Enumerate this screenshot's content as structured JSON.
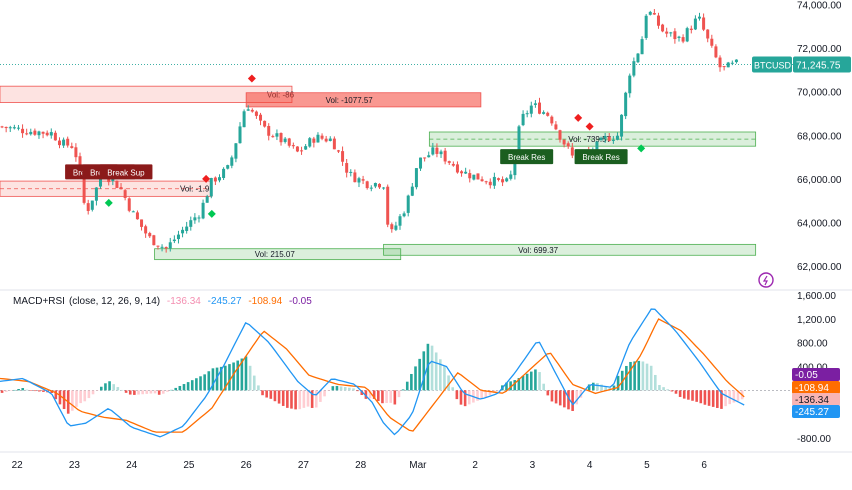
{
  "chart_data": [
    {
      "type": "candlestick",
      "symbol": "BTCUSD",
      "last_price": "71,245.75",
      "colors": {
        "up": "#26a69a",
        "down": "#ef5350",
        "price_line": "#26a69a"
      },
      "price_axis": {
        "ticks": [
          "74,000.00",
          "72,000.00",
          "70,000.00",
          "68,000.00",
          "66,000.00",
          "64,000.00",
          "62,000.00"
        ],
        "ylim": [
          61000,
          74200
        ]
      },
      "time_axis": {
        "ticks": [
          "22",
          "23",
          "24",
          "25",
          "26",
          "27",
          "28",
          "Mar",
          "2",
          "3",
          "4",
          "5",
          "6"
        ],
        "xlim": [
          21.7,
          35.5
        ]
      },
      "ohlc_anchors": [
        {
          "t": 21.7,
          "p": 68400
        },
        {
          "t": 22.2,
          "p": 68200
        },
        {
          "t": 22.6,
          "p": 68100
        },
        {
          "t": 22.8,
          "p": 67600
        },
        {
          "t": 23.0,
          "p": 67500
        },
        {
          "t": 23.2,
          "p": 64400
        },
        {
          "t": 23.5,
          "p": 66300
        },
        {
          "t": 23.8,
          "p": 65600
        },
        {
          "t": 24.0,
          "p": 64500
        },
        {
          "t": 24.3,
          "p": 63300
        },
        {
          "t": 24.6,
          "p": 62800
        },
        {
          "t": 24.8,
          "p": 63400
        },
        {
          "t": 25.2,
          "p": 64500
        },
        {
          "t": 25.4,
          "p": 65900
        },
        {
          "t": 25.7,
          "p": 66500
        },
        {
          "t": 26.0,
          "p": 69500
        },
        {
          "t": 26.3,
          "p": 68300
        },
        {
          "t": 26.6,
          "p": 67800
        },
        {
          "t": 26.9,
          "p": 67200
        },
        {
          "t": 27.2,
          "p": 67900
        },
        {
          "t": 27.5,
          "p": 67800
        },
        {
          "t": 27.8,
          "p": 66200
        },
        {
          "t": 28.1,
          "p": 65800
        },
        {
          "t": 28.4,
          "p": 65800
        },
        {
          "t": 28.5,
          "p": 63300
        },
        {
          "t": 28.8,
          "p": 64800
        },
        {
          "t": 29.0,
          "p": 66800
        },
        {
          "t": 29.3,
          "p": 67300
        },
        {
          "t": 29.5,
          "p": 66900
        },
        {
          "t": 29.8,
          "p": 66300
        },
        {
          "t": 30.0,
          "p": 66100
        },
        {
          "t": 30.3,
          "p": 65900
        },
        {
          "t": 30.6,
          "p": 65800
        },
        {
          "t": 30.8,
          "p": 68700
        },
        {
          "t": 31.0,
          "p": 69400
        },
        {
          "t": 31.3,
          "p": 68900
        },
        {
          "t": 31.5,
          "p": 67900
        },
        {
          "t": 31.7,
          "p": 67000
        },
        {
          "t": 32.0,
          "p": 67200
        },
        {
          "t": 32.3,
          "p": 67900
        },
        {
          "t": 32.5,
          "p": 68000
        },
        {
          "t": 32.7,
          "p": 70900
        },
        {
          "t": 32.9,
          "p": 72200
        },
        {
          "t": 33.0,
          "p": 73800
        },
        {
          "t": 33.3,
          "p": 72700
        },
        {
          "t": 33.6,
          "p": 72400
        },
        {
          "t": 33.9,
          "p": 73400
        },
        {
          "t": 34.1,
          "p": 72100
        },
        {
          "t": 34.3,
          "p": 71000
        },
        {
          "t": 34.6,
          "p": 71300
        }
      ],
      "zones": [
        {
          "kind": "supply",
          "t0": 21.7,
          "t1": 26.8,
          "top": 70250,
          "bottom": 69500,
          "label": "Vol: -86",
          "label_t": 26.6
        },
        {
          "kind": "supply",
          "t0": 26.0,
          "t1": 30.1,
          "top": 69950,
          "bottom": 69300,
          "label": "Vol: -1077.57",
          "label_t": 27.8
        },
        {
          "kind": "supply",
          "t0": 21.7,
          "t1": 25.4,
          "top": 65900,
          "bottom": 65200,
          "label": "Vol: -1.9",
          "label_t": 25.1
        },
        {
          "kind": "demand",
          "t0": 24.4,
          "t1": 28.7,
          "top": 62800,
          "bottom": 62300,
          "label": "Vol: 215.07",
          "label_t": 26.5
        },
        {
          "kind": "demand",
          "t0": 28.4,
          "t1": 34.9,
          "top": 63000,
          "bottom": 62500,
          "label": "Vol: 699.37",
          "label_t": 31.1
        },
        {
          "kind": "demand",
          "t0": 29.2,
          "t1": 34.9,
          "top": 68150,
          "bottom": 67500,
          "label": "Vol: -739.57",
          "label_t": 32.0
        }
      ],
      "break_labels": [
        {
          "text": "Break Sup",
          "t": 23.3,
          "p": 66300,
          "color": "#8b1a1a"
        },
        {
          "text": "Break Sup",
          "t": 23.6,
          "p": 66300,
          "color": "#8b1a1a"
        },
        {
          "text": "Break Sup",
          "t": 23.9,
          "p": 66300,
          "color": "#8b1a1a"
        },
        {
          "text": "Break Res",
          "t": 30.9,
          "p": 67000,
          "color": "#1b5e20"
        },
        {
          "text": "Break Res",
          "t": 32.2,
          "p": 67000,
          "color": "#1b5e20"
        }
      ],
      "diamonds": [
        {
          "t": 23.6,
          "p": 64900,
          "color": "#00c853"
        },
        {
          "t": 25.3,
          "p": 66000,
          "color": "#ef1f1f"
        },
        {
          "t": 25.4,
          "p": 64400,
          "color": "#00c853"
        },
        {
          "t": 26.1,
          "p": 70600,
          "color": "#ef1f1f"
        },
        {
          "t": 31.8,
          "p": 68800,
          "color": "#ef1f1f"
        },
        {
          "t": 32.0,
          "p": 68400,
          "color": "#ef1f1f"
        },
        {
          "t": 32.9,
          "p": 67400,
          "color": "#00c853"
        }
      ]
    },
    {
      "type": "macd",
      "title": "MACD+RSI",
      "params": "(close, 12, 26, 9, 14)",
      "legend_values": [
        {
          "text": "-136.34",
          "color": "#f8b4b4"
        },
        {
          "text": "-245.27",
          "color": "#2196f3"
        },
        {
          "text": "-108.94",
          "color": "#ff6d00"
        },
        {
          "text": "-0.05",
          "color": "#7b1fa2"
        }
      ],
      "value_axis": {
        "ticks": [
          "1,600.00",
          "1,200.00",
          "800.00",
          "400.00",
          "-800.00"
        ],
        "ylim": [
          -1000,
          1650
        ]
      },
      "badges": [
        {
          "text": "-0.05",
          "color": "#7b1fa2",
          "value": -0.05
        },
        {
          "text": "-108.94",
          "color": "#ff6d00",
          "value": -108.94
        },
        {
          "text": "-136.34",
          "color": "#f8b4b4",
          "value": -136.34
        },
        {
          "text": "-245.27",
          "color": "#2196f3",
          "value": -245.27
        }
      ],
      "macd_anchors": [
        {
          "t": 21.7,
          "v": 150
        },
        {
          "t": 22.1,
          "v": 200
        },
        {
          "t": 22.6,
          "v": -50
        },
        {
          "t": 22.9,
          "v": -600
        },
        {
          "t": 23.2,
          "v": -550
        },
        {
          "t": 23.6,
          "v": -300
        },
        {
          "t": 24.0,
          "v": -620
        },
        {
          "t": 24.5,
          "v": -780
        },
        {
          "t": 24.9,
          "v": -600
        },
        {
          "t": 25.3,
          "v": -100
        },
        {
          "t": 25.6,
          "v": 400
        },
        {
          "t": 26.0,
          "v": 1150
        },
        {
          "t": 26.4,
          "v": 800
        },
        {
          "t": 26.9,
          "v": 150
        },
        {
          "t": 27.2,
          "v": -100
        },
        {
          "t": 27.5,
          "v": 200
        },
        {
          "t": 27.9,
          "v": 100
        },
        {
          "t": 28.2,
          "v": -200
        },
        {
          "t": 28.4,
          "v": -550
        },
        {
          "t": 28.6,
          "v": -750
        },
        {
          "t": 28.9,
          "v": -400
        },
        {
          "t": 29.2,
          "v": 500
        },
        {
          "t": 29.5,
          "v": 400
        },
        {
          "t": 29.8,
          "v": -50
        },
        {
          "t": 30.1,
          "v": -150
        },
        {
          "t": 30.4,
          "v": -50
        },
        {
          "t": 30.7,
          "v": 300
        },
        {
          "t": 31.1,
          "v": 850
        },
        {
          "t": 31.4,
          "v": 300
        },
        {
          "t": 31.7,
          "v": -250
        },
        {
          "t": 32.0,
          "v": 100
        },
        {
          "t": 32.4,
          "v": 50
        },
        {
          "t": 32.7,
          "v": 800
        },
        {
          "t": 33.1,
          "v": 1400
        },
        {
          "t": 33.5,
          "v": 1000
        },
        {
          "t": 33.9,
          "v": 500
        },
        {
          "t": 34.3,
          "v": -50
        },
        {
          "t": 34.7,
          "v": -245
        }
      ],
      "signal_anchors": [
        {
          "t": 21.7,
          "v": 200
        },
        {
          "t": 22.2,
          "v": 150
        },
        {
          "t": 22.7,
          "v": -50
        },
        {
          "t": 23.1,
          "v": -350
        },
        {
          "t": 23.5,
          "v": -450
        },
        {
          "t": 23.9,
          "v": -500
        },
        {
          "t": 24.4,
          "v": -700
        },
        {
          "t": 24.9,
          "v": -700
        },
        {
          "t": 25.4,
          "v": -300
        },
        {
          "t": 25.8,
          "v": 300
        },
        {
          "t": 26.3,
          "v": 1000
        },
        {
          "t": 26.7,
          "v": 700
        },
        {
          "t": 27.1,
          "v": 250
        },
        {
          "t": 27.6,
          "v": 100
        },
        {
          "t": 28.1,
          "v": 50
        },
        {
          "t": 28.5,
          "v": -450
        },
        {
          "t": 28.9,
          "v": -700
        },
        {
          "t": 29.3,
          "v": -200
        },
        {
          "t": 29.7,
          "v": 300
        },
        {
          "t": 30.1,
          "v": 0
        },
        {
          "t": 30.5,
          "v": -50
        },
        {
          "t": 30.9,
          "v": 300
        },
        {
          "t": 31.3,
          "v": 650
        },
        {
          "t": 31.7,
          "v": 100
        },
        {
          "t": 32.1,
          "v": -50
        },
        {
          "t": 32.5,
          "v": 50
        },
        {
          "t": 32.9,
          "v": 600
        },
        {
          "t": 33.2,
          "v": 1200
        },
        {
          "t": 33.6,
          "v": 1000
        },
        {
          "t": 34.0,
          "v": 600
        },
        {
          "t": 34.4,
          "v": 150
        },
        {
          "t": 34.7,
          "v": -109
        }
      ]
    }
  ]
}
